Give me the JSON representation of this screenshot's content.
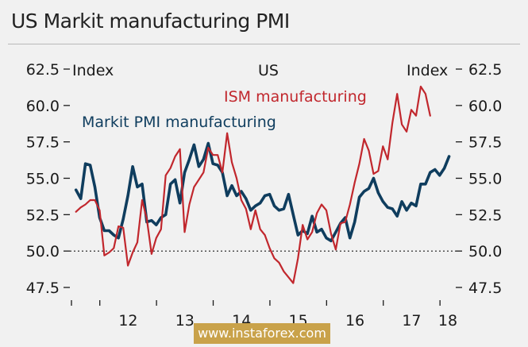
{
  "title": "US Markit manufacturing PMI",
  "watermark": "www.instaforex.com",
  "chart_data": {
    "type": "line",
    "center_label": "US",
    "left_axis_label": "Index",
    "right_axis_label": "Index",
    "ylim": [
      47.5,
      62.5
    ],
    "yticks": [
      "62.5",
      "60.0",
      "57.5",
      "55.0",
      "52.5",
      "50.0",
      "47.5"
    ],
    "reference_line": 50.0,
    "x_tick_labels": [
      "12",
      "13",
      "14",
      "15",
      "16",
      "17",
      "18"
    ],
    "x_start": 2011.5,
    "x_end": 2018.25,
    "series": [
      {
        "name": "Markit PMI manufacturing",
        "color": "#0f3d5e",
        "x_start": 2011.58,
        "x_step": 0.0833,
        "values": [
          54.2,
          53.6,
          56.0,
          55.9,
          54.4,
          52.3,
          51.4,
          51.4,
          51.1,
          50.9,
          52.2,
          53.8,
          55.8,
          54.4,
          54.6,
          52.0,
          52.1,
          51.8,
          52.3,
          52.5,
          54.6,
          54.9,
          53.3,
          55.4,
          56.3,
          57.3,
          55.8,
          56.3,
          57.4,
          56.0,
          55.9,
          55.4,
          53.8,
          54.5,
          53.8,
          54.1,
          53.6,
          52.8,
          53.1,
          53.3,
          53.8,
          53.9,
          53.1,
          52.8,
          52.9,
          53.9,
          52.5,
          51.1,
          51.4,
          51.2,
          52.4,
          51.3,
          51.5,
          50.9,
          50.7,
          51.3,
          51.9,
          52.3,
          50.9,
          52.0,
          53.7,
          54.1,
          54.3,
          55.0,
          54.0,
          53.4,
          53.0,
          52.9,
          52.4,
          53.4,
          52.8,
          53.3,
          53.1,
          54.6,
          54.6,
          55.4,
          55.6,
          55.2,
          55.7,
          56.5
        ]
      },
      {
        "name": "ISM manufacturing",
        "color": "#c1272d",
        "x_start": 2011.58,
        "x_step": 0.0833,
        "values": [
          52.7,
          53.0,
          53.2,
          53.5,
          53.5,
          52.8,
          49.7,
          49.9,
          50.2,
          51.7,
          51.6,
          49.0,
          49.9,
          50.6,
          53.5,
          52.2,
          49.8,
          50.9,
          51.5,
          55.2,
          55.7,
          56.5,
          57.0,
          51.3,
          53.2,
          54.4,
          54.9,
          55.4,
          57.1,
          56.6,
          56.6,
          55.4,
          58.1,
          56.1,
          55.0,
          53.5,
          52.9,
          51.5,
          52.8,
          51.5,
          51.1,
          50.2,
          49.5,
          49.2,
          48.6,
          48.2,
          47.8,
          49.5,
          51.8,
          50.8,
          51.3,
          52.6,
          53.2,
          52.8,
          51.2,
          50.1,
          51.9,
          52.0,
          53.2,
          54.7,
          56.0,
          57.7,
          56.9,
          55.3,
          55.5,
          57.2,
          56.3,
          58.8,
          60.8,
          58.7,
          58.2,
          59.7,
          59.3,
          61.3,
          60.8,
          59.3
        ]
      }
    ]
  }
}
